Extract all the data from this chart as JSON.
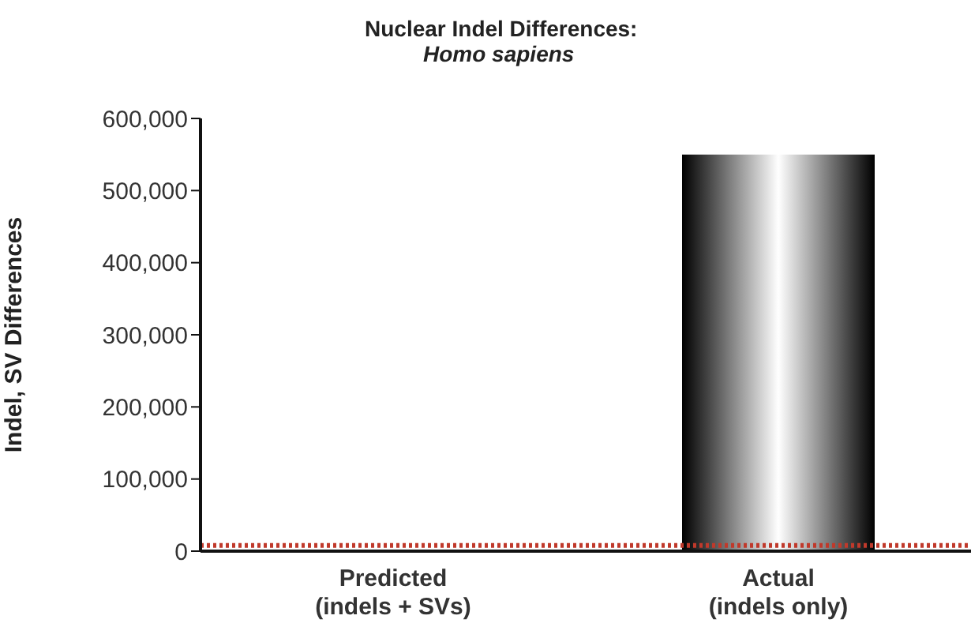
{
  "chart_data": {
    "type": "bar",
    "title": "Nuclear Indel Differences:",
    "subtitle": "Homo sapiens",
    "ylabel": "Indel, SV Differences",
    "categories": [
      "Predicted\n(indels + SVs)",
      "Actual\n(indels only)"
    ],
    "values": [
      null,
      550000
    ],
    "color": "#000000",
    "ylim": [
      0,
      600000
    ],
    "yticks": [
      {
        "value": 0,
        "label": "0"
      },
      {
        "value": 100000,
        "label": "100,000"
      },
      {
        "value": 200000,
        "label": "200,000"
      },
      {
        "value": 300000,
        "label": "300,000"
      },
      {
        "value": 400000,
        "label": "400,000"
      },
      {
        "value": 500000,
        "label": "500,000"
      },
      {
        "value": 600000,
        "label": "600,000"
      }
    ],
    "ref_lines": [
      {
        "axis": "y",
        "value": 8000,
        "color": "#c0392b",
        "line_style": "dotted"
      }
    ],
    "grid": false,
    "legend": false
  }
}
